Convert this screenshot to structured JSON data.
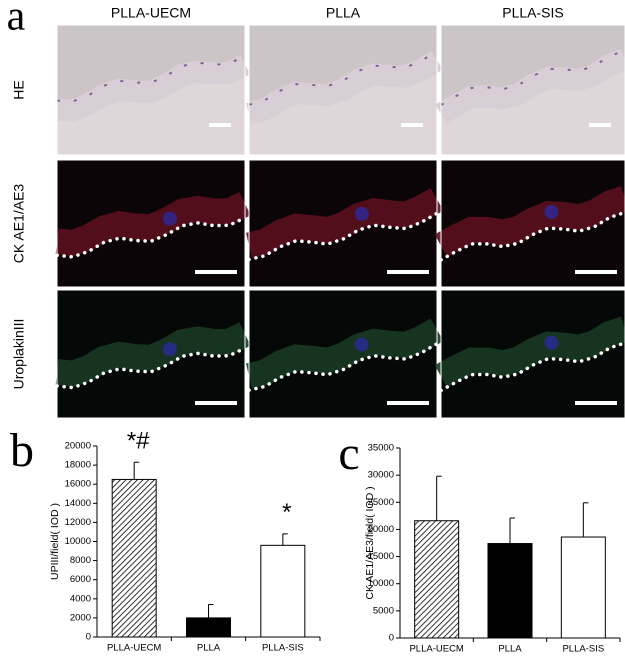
{
  "labels": [
    "a",
    "b",
    "c"
  ],
  "columns": [
    "PLLA-UECM",
    "PLLA",
    "PLLA-SIS"
  ],
  "rows": [
    "HE",
    "CK AE1/AE3",
    "UroplakinIII"
  ],
  "chart_data": [
    {
      "type": "bar",
      "y_label": "UPIII/field( IOD )",
      "categories": [
        "PLLA-UECM",
        "PLLA",
        "PLLA-SIS"
      ],
      "values": [
        16500,
        2000,
        9600
      ],
      "errors": [
        1800,
        1400,
        1200
      ],
      "colors": [
        "#ffffff",
        "#000000",
        "#ffffff"
      ],
      "hatch": [
        true,
        false,
        false
      ],
      "annotations": [
        "*#",
        null,
        "*"
      ],
      "ylim": [
        0,
        20000
      ],
      "yticks": [
        0,
        2000,
        4000,
        6000,
        8000,
        10000,
        12000,
        14000,
        16000,
        18000,
        20000
      ]
    },
    {
      "type": "bar",
      "y_label": "CK AE1/AE3/field( IOD )",
      "categories": [
        "PLLA-UECM",
        "PLLA",
        "PLLA-SIS"
      ],
      "values": [
        21600,
        17400,
        18600
      ],
      "errors": [
        8200,
        4700,
        6300
      ],
      "colors": [
        "#ffffff",
        "#000000",
        "#ffffff"
      ],
      "hatch": [
        true,
        false,
        false
      ],
      "ylim": [
        0,
        35000
      ],
      "yticks": [
        0,
        5000,
        10000,
        15000,
        20000,
        25000,
        30000,
        35000
      ]
    }
  ]
}
